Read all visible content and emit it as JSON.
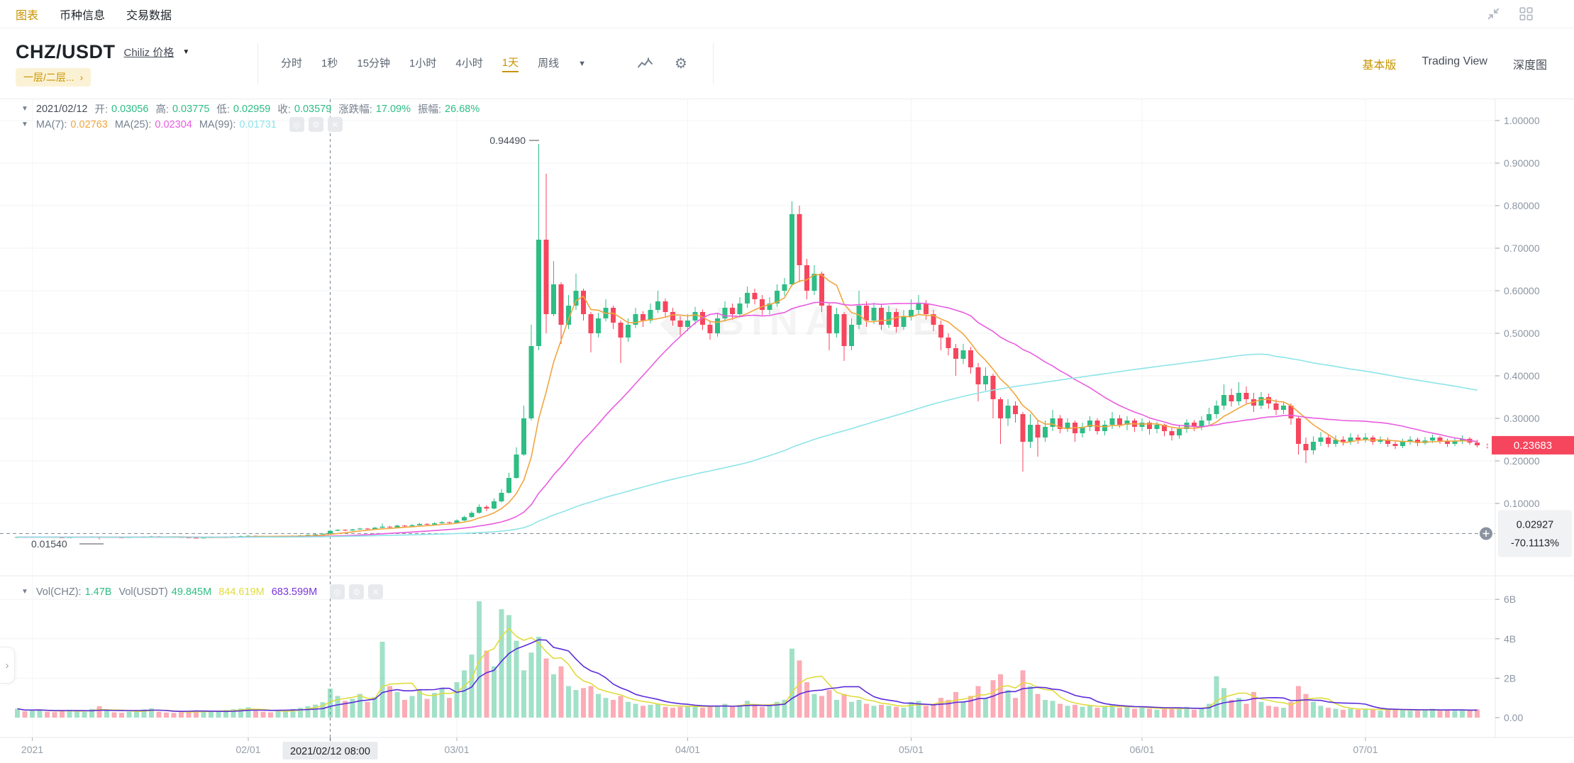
{
  "topnav": {
    "tabs": [
      {
        "label": "图表",
        "active": true
      },
      {
        "label": "币种信息",
        "active": false
      },
      {
        "label": "交易数据",
        "active": false
      }
    ]
  },
  "header": {
    "symbol": "CHZ/USDT",
    "pair_name": "Chiliz 价格",
    "tag": "一层/二层...",
    "tag_arrow": "›",
    "timeframes": [
      "分时",
      "1秒",
      "15分钟",
      "1小时",
      "4小时",
      "1天",
      "周线"
    ],
    "active_timeframe": "1天",
    "right_links": [
      {
        "label": "基本版",
        "active": true
      },
      {
        "label": "Trading View",
        "active": false
      },
      {
        "label": "深度图",
        "active": false
      }
    ]
  },
  "readout": {
    "date": "2021/02/12",
    "open_label": "开:",
    "open": "0.03056",
    "high_label": "高:",
    "high": "0.03775",
    "low_label": "低:",
    "low": "0.02959",
    "close_label": "收:",
    "close": "0.03579",
    "change_label": "涨跌幅:",
    "change": "17.09%",
    "amplitude_label": "振幅:",
    "amplitude": "26.68%"
  },
  "ma_readout": {
    "ma7_label": "MA(7):",
    "ma7": "0.02763",
    "ma25_label": "MA(25):",
    "ma25": "0.02304",
    "ma99_label": "MA(99):",
    "ma99": "0.01731"
  },
  "vol_readout": {
    "volchz_label": "Vol(CHZ):",
    "volchz": "1.47B",
    "volusdt_label": "Vol(USDT)",
    "volusdt": "49.845M",
    "vol_ma5": "844.619M",
    "vol_ma10": "683.599M"
  },
  "annotations": {
    "high": "0.94490",
    "low": "0.01540",
    "last_price": "0.23683",
    "tracking_price": "0.02927",
    "tracking_change": "-70.1113%",
    "crosshair_date": "2021/02/12 08:00"
  },
  "axes": {
    "price_ticks": [
      "1.00000",
      "0.90000",
      "0.80000",
      "0.70000",
      "0.60000",
      "0.50000",
      "0.40000",
      "0.30000",
      "0.20000",
      "0.10000"
    ],
    "volume_ticks": [
      "6B",
      "4B",
      "2B",
      "0.00"
    ],
    "x_ticks": [
      {
        "label": "2021",
        "i": 2
      },
      {
        "label": "02/01",
        "i": 31
      },
      {
        "label": "03/01",
        "i": 59
      },
      {
        "label": "04/01",
        "i": 90
      },
      {
        "label": "05/01",
        "i": 120
      },
      {
        "label": "06/01",
        "i": 151
      },
      {
        "label": "07/01",
        "i": 181
      }
    ]
  },
  "watermark": "◆ BINANCE",
  "colors": {
    "up": "#2EBD85",
    "down": "#F6465D",
    "ma7": "#F0A63E",
    "ma25": "#E95CDF",
    "ma99": "#8EE4E8",
    "vol_ma5": "#E0DC3C",
    "vol_ma10": "#5B2BD9",
    "accent": "#C99400"
  },
  "chart_data": {
    "type": "candlestick",
    "pair": "CHZ/USDT",
    "interval": "1天",
    "x_range": [
      "2021-01-01",
      "2021-07-16"
    ],
    "price_axis_range": [
      0.0,
      1.05
    ],
    "volume_axis_range_B": [
      0,
      6.5
    ],
    "ma_periods": [
      7,
      25,
      99
    ],
    "volume_ma_periods": [
      5,
      10
    ],
    "crosshair_index": 42,
    "candle_format": [
      "close",
      "high",
      "low",
      "volume_B"
    ],
    "candles": [
      [
        0.021,
        0.0222,
        0.0198,
        0.45
      ],
      [
        0.0205,
        0.0215,
        0.0197,
        0.32
      ],
      [
        0.0212,
        0.022,
        0.02,
        0.38
      ],
      [
        0.0218,
        0.0227,
        0.0206,
        0.41
      ],
      [
        0.0209,
        0.0221,
        0.02,
        0.3
      ],
      [
        0.0201,
        0.0212,
        0.0192,
        0.28
      ],
      [
        0.0195,
        0.0206,
        0.0187,
        0.35
      ],
      [
        0.0203,
        0.0211,
        0.019,
        0.4
      ],
      [
        0.021,
        0.0218,
        0.0199,
        0.33
      ],
      [
        0.0216,
        0.0225,
        0.0205,
        0.29
      ],
      [
        0.0222,
        0.0231,
        0.021,
        0.44
      ],
      [
        0.0196,
        0.0224,
        0.0154,
        0.58
      ],
      [
        0.0208,
        0.0216,
        0.0192,
        0.36
      ],
      [
        0.0202,
        0.0212,
        0.0194,
        0.27
      ],
      [
        0.0198,
        0.0207,
        0.0189,
        0.25
      ],
      [
        0.0205,
        0.0213,
        0.0195,
        0.31
      ],
      [
        0.0213,
        0.0221,
        0.0201,
        0.38
      ],
      [
        0.022,
        0.0229,
        0.0209,
        0.42
      ],
      [
        0.0228,
        0.0237,
        0.0216,
        0.47
      ],
      [
        0.0221,
        0.0233,
        0.0211,
        0.3
      ],
      [
        0.0214,
        0.0224,
        0.0205,
        0.26
      ],
      [
        0.0207,
        0.0217,
        0.0198,
        0.24
      ],
      [
        0.02,
        0.021,
        0.0191,
        0.28
      ],
      [
        0.0194,
        0.0204,
        0.0185,
        0.33
      ],
      [
        0.0188,
        0.0198,
        0.0176,
        0.37
      ],
      [
        0.0196,
        0.0204,
        0.0184,
        0.29
      ],
      [
        0.0204,
        0.0212,
        0.0193,
        0.31
      ],
      [
        0.0212,
        0.022,
        0.0201,
        0.35
      ],
      [
        0.0219,
        0.0228,
        0.0208,
        0.39
      ],
      [
        0.0226,
        0.0236,
        0.0215,
        0.43
      ],
      [
        0.0233,
        0.0243,
        0.0222,
        0.46
      ],
      [
        0.024,
        0.0251,
        0.0229,
        0.52
      ],
      [
        0.0232,
        0.0246,
        0.0222,
        0.34
      ],
      [
        0.0224,
        0.0236,
        0.0214,
        0.3
      ],
      [
        0.0217,
        0.0228,
        0.0207,
        0.27
      ],
      [
        0.0225,
        0.0233,
        0.0213,
        0.32
      ],
      [
        0.0234,
        0.0242,
        0.0221,
        0.38
      ],
      [
        0.0242,
        0.0251,
        0.023,
        0.44
      ],
      [
        0.025,
        0.026,
        0.0238,
        0.5
      ],
      [
        0.0262,
        0.0272,
        0.0248,
        0.58
      ],
      [
        0.0275,
        0.0286,
        0.026,
        0.66
      ],
      [
        0.029,
        0.0301,
        0.0272,
        0.78
      ],
      [
        0.0358,
        0.0378,
        0.0296,
        1.47
      ],
      [
        0.038,
        0.0398,
        0.0348,
        1.1
      ],
      [
        0.0365,
        0.0392,
        0.035,
        0.85
      ],
      [
        0.039,
        0.0405,
        0.0358,
        0.95
      ],
      [
        0.041,
        0.0428,
        0.0382,
        1.2
      ],
      [
        0.0398,
        0.0422,
        0.0385,
        0.8
      ],
      [
        0.043,
        0.0448,
        0.039,
        1.05
      ],
      [
        0.0455,
        0.053,
        0.042,
        3.85
      ],
      [
        0.0438,
        0.047,
        0.0425,
        1.6
      ],
      [
        0.048,
        0.05,
        0.043,
        1.3
      ],
      [
        0.0465,
        0.0492,
        0.0448,
        0.9
      ],
      [
        0.049,
        0.0512,
        0.0455,
        1.1
      ],
      [
        0.052,
        0.0542,
        0.0478,
        1.4
      ],
      [
        0.0505,
        0.0535,
        0.0488,
        0.95
      ],
      [
        0.0535,
        0.0558,
        0.0495,
        1.25
      ],
      [
        0.056,
        0.0585,
        0.0525,
        1.5
      ],
      [
        0.0545,
        0.0572,
        0.0528,
        1.0
      ],
      [
        0.06,
        0.063,
        0.053,
        1.8
      ],
      [
        0.068,
        0.071,
        0.0585,
        2.4
      ],
      [
        0.078,
        0.082,
        0.066,
        3.2
      ],
      [
        0.092,
        0.098,
        0.076,
        5.9
      ],
      [
        0.088,
        0.096,
        0.082,
        3.4
      ],
      [
        0.105,
        0.112,
        0.086,
        2.6
      ],
      [
        0.125,
        0.134,
        0.102,
        5.5
      ],
      [
        0.16,
        0.172,
        0.123,
        5.2
      ],
      [
        0.215,
        0.232,
        0.158,
        3.9
      ],
      [
        0.3,
        0.33,
        0.212,
        2.4
      ],
      [
        0.47,
        0.52,
        0.295,
        3.3
      ],
      [
        0.72,
        0.9449,
        0.46,
        4.1
      ],
      [
        0.545,
        0.875,
        0.5,
        3.0
      ],
      [
        0.615,
        0.67,
        0.54,
        2.2
      ],
      [
        0.52,
        0.62,
        0.475,
        2.6
      ],
      [
        0.565,
        0.59,
        0.51,
        1.6
      ],
      [
        0.6,
        0.64,
        0.555,
        1.4
      ],
      [
        0.545,
        0.605,
        0.53,
        1.5
      ],
      [
        0.5,
        0.55,
        0.455,
        1.6
      ],
      [
        0.535,
        0.548,
        0.49,
        1.2
      ],
      [
        0.56,
        0.58,
        0.528,
        1.0
      ],
      [
        0.525,
        0.565,
        0.51,
        0.9
      ],
      [
        0.49,
        0.53,
        0.43,
        1.1
      ],
      [
        0.52,
        0.535,
        0.48,
        0.8
      ],
      [
        0.545,
        0.56,
        0.512,
        0.7
      ],
      [
        0.53,
        0.552,
        0.515,
        0.6
      ],
      [
        0.555,
        0.57,
        0.523,
        0.65
      ],
      [
        0.575,
        0.6,
        0.548,
        0.7
      ],
      [
        0.55,
        0.582,
        0.538,
        0.55
      ],
      [
        0.53,
        0.56,
        0.518,
        0.5
      ],
      [
        0.515,
        0.54,
        0.495,
        0.55
      ],
      [
        0.53,
        0.545,
        0.505,
        0.6
      ],
      [
        0.55,
        0.562,
        0.52,
        0.65
      ],
      [
        0.52,
        0.556,
        0.508,
        0.5
      ],
      [
        0.5,
        0.53,
        0.485,
        0.55
      ],
      [
        0.535,
        0.548,
        0.492,
        0.6
      ],
      [
        0.56,
        0.575,
        0.528,
        0.7
      ],
      [
        0.545,
        0.57,
        0.532,
        0.55
      ],
      [
        0.57,
        0.585,
        0.538,
        0.65
      ],
      [
        0.595,
        0.61,
        0.56,
        0.85
      ],
      [
        0.58,
        0.605,
        0.568,
        0.6
      ],
      [
        0.555,
        0.59,
        0.543,
        0.55
      ],
      [
        0.57,
        0.585,
        0.544,
        0.6
      ],
      [
        0.6,
        0.615,
        0.562,
        0.8
      ],
      [
        0.615,
        0.63,
        0.588,
        0.9
      ],
      [
        0.78,
        0.81,
        0.61,
        3.5
      ],
      [
        0.66,
        0.8,
        0.62,
        2.9
      ],
      [
        0.6,
        0.675,
        0.58,
        1.8
      ],
      [
        0.64,
        0.66,
        0.59,
        1.2
      ],
      [
        0.565,
        0.645,
        0.55,
        1.1
      ],
      [
        0.5,
        0.57,
        0.46,
        1.4
      ],
      [
        0.545,
        0.56,
        0.49,
        0.9
      ],
      [
        0.47,
        0.55,
        0.435,
        1.2
      ],
      [
        0.52,
        0.535,
        0.46,
        0.8
      ],
      [
        0.565,
        0.6,
        0.51,
        0.9
      ],
      [
        0.53,
        0.575,
        0.515,
        0.7
      ],
      [
        0.56,
        0.572,
        0.522,
        0.6
      ],
      [
        0.52,
        0.568,
        0.508,
        0.65
      ],
      [
        0.55,
        0.565,
        0.512,
        0.6
      ],
      [
        0.515,
        0.558,
        0.502,
        0.55
      ],
      [
        0.54,
        0.555,
        0.508,
        0.5
      ],
      [
        0.555,
        0.58,
        0.53,
        0.8
      ],
      [
        0.57,
        0.59,
        0.545,
        0.85
      ],
      [
        0.545,
        0.578,
        0.532,
        0.6
      ],
      [
        0.52,
        0.555,
        0.505,
        0.65
      ],
      [
        0.49,
        0.53,
        0.46,
        1.0
      ],
      [
        0.465,
        0.5,
        0.448,
        0.9
      ],
      [
        0.44,
        0.475,
        0.4,
        1.3
      ],
      [
        0.46,
        0.475,
        0.428,
        0.8
      ],
      [
        0.42,
        0.468,
        0.405,
        1.1
      ],
      [
        0.38,
        0.43,
        0.34,
        1.6
      ],
      [
        0.4,
        0.42,
        0.365,
        1.0
      ],
      [
        0.345,
        0.405,
        0.3,
        1.9
      ],
      [
        0.3,
        0.35,
        0.24,
        2.2
      ],
      [
        0.33,
        0.345,
        0.282,
        1.4
      ],
      [
        0.31,
        0.34,
        0.29,
        1.0
      ],
      [
        0.245,
        0.315,
        0.175,
        2.4
      ],
      [
        0.285,
        0.31,
        0.23,
        1.6
      ],
      [
        0.255,
        0.295,
        0.21,
        1.2
      ],
      [
        0.28,
        0.295,
        0.245,
        0.9
      ],
      [
        0.3,
        0.32,
        0.27,
        0.85
      ],
      [
        0.275,
        0.308,
        0.265,
        0.7
      ],
      [
        0.29,
        0.3,
        0.268,
        0.6
      ],
      [
        0.265,
        0.295,
        0.245,
        0.65
      ],
      [
        0.28,
        0.29,
        0.255,
        0.55
      ],
      [
        0.295,
        0.305,
        0.27,
        0.6
      ],
      [
        0.27,
        0.3,
        0.262,
        0.5
      ],
      [
        0.285,
        0.295,
        0.26,
        0.55
      ],
      [
        0.3,
        0.315,
        0.275,
        0.65
      ],
      [
        0.285,
        0.308,
        0.278,
        0.5
      ],
      [
        0.295,
        0.305,
        0.272,
        0.55
      ],
      [
        0.28,
        0.3,
        0.268,
        0.45
      ],
      [
        0.29,
        0.3,
        0.27,
        0.55
      ],
      [
        0.275,
        0.295,
        0.262,
        0.45
      ],
      [
        0.285,
        0.292,
        0.265,
        0.4
      ],
      [
        0.27,
        0.288,
        0.258,
        0.45
      ],
      [
        0.26,
        0.278,
        0.248,
        0.5
      ],
      [
        0.275,
        0.285,
        0.252,
        0.45
      ],
      [
        0.29,
        0.298,
        0.266,
        0.55
      ],
      [
        0.28,
        0.296,
        0.27,
        0.4
      ],
      [
        0.295,
        0.305,
        0.272,
        0.5
      ],
      [
        0.31,
        0.325,
        0.285,
        0.7
      ],
      [
        0.33,
        0.342,
        0.3,
        2.1
      ],
      [
        0.355,
        0.38,
        0.32,
        1.5
      ],
      [
        0.34,
        0.37,
        0.328,
        0.9
      ],
      [
        0.36,
        0.385,
        0.33,
        1.0
      ],
      [
        0.345,
        0.375,
        0.335,
        0.7
      ],
      [
        0.33,
        0.36,
        0.315,
        1.3
      ],
      [
        0.35,
        0.362,
        0.322,
        0.8
      ],
      [
        0.335,
        0.358,
        0.323,
        0.6
      ],
      [
        0.32,
        0.345,
        0.308,
        0.55
      ],
      [
        0.33,
        0.34,
        0.31,
        0.5
      ],
      [
        0.3,
        0.335,
        0.285,
        0.8
      ],
      [
        0.24,
        0.305,
        0.215,
        1.6
      ],
      [
        0.225,
        0.255,
        0.195,
        1.2
      ],
      [
        0.245,
        0.258,
        0.215,
        0.8
      ],
      [
        0.255,
        0.268,
        0.235,
        0.6
      ],
      [
        0.24,
        0.262,
        0.232,
        0.5
      ],
      [
        0.25,
        0.26,
        0.233,
        0.45
      ],
      [
        0.245,
        0.258,
        0.236,
        0.4
      ],
      [
        0.255,
        0.265,
        0.238,
        0.45
      ],
      [
        0.25,
        0.262,
        0.24,
        0.4
      ],
      [
        0.255,
        0.265,
        0.243,
        0.45
      ],
      [
        0.245,
        0.26,
        0.238,
        0.4
      ],
      [
        0.25,
        0.258,
        0.24,
        0.35
      ],
      [
        0.24,
        0.255,
        0.233,
        0.4
      ],
      [
        0.235,
        0.248,
        0.228,
        0.45
      ],
      [
        0.245,
        0.252,
        0.23,
        0.4
      ],
      [
        0.25,
        0.258,
        0.238,
        0.35
      ],
      [
        0.242,
        0.255,
        0.235,
        0.35
      ],
      [
        0.248,
        0.256,
        0.238,
        0.4
      ],
      [
        0.255,
        0.262,
        0.242,
        0.45
      ],
      [
        0.247,
        0.259,
        0.24,
        0.35
      ],
      [
        0.24,
        0.252,
        0.233,
        0.4
      ],
      [
        0.246,
        0.253,
        0.235,
        0.35
      ],
      [
        0.252,
        0.26,
        0.24,
        0.4
      ],
      [
        0.243,
        0.256,
        0.238,
        0.35
      ],
      [
        0.2368,
        0.25,
        0.232,
        0.42
      ]
    ]
  }
}
